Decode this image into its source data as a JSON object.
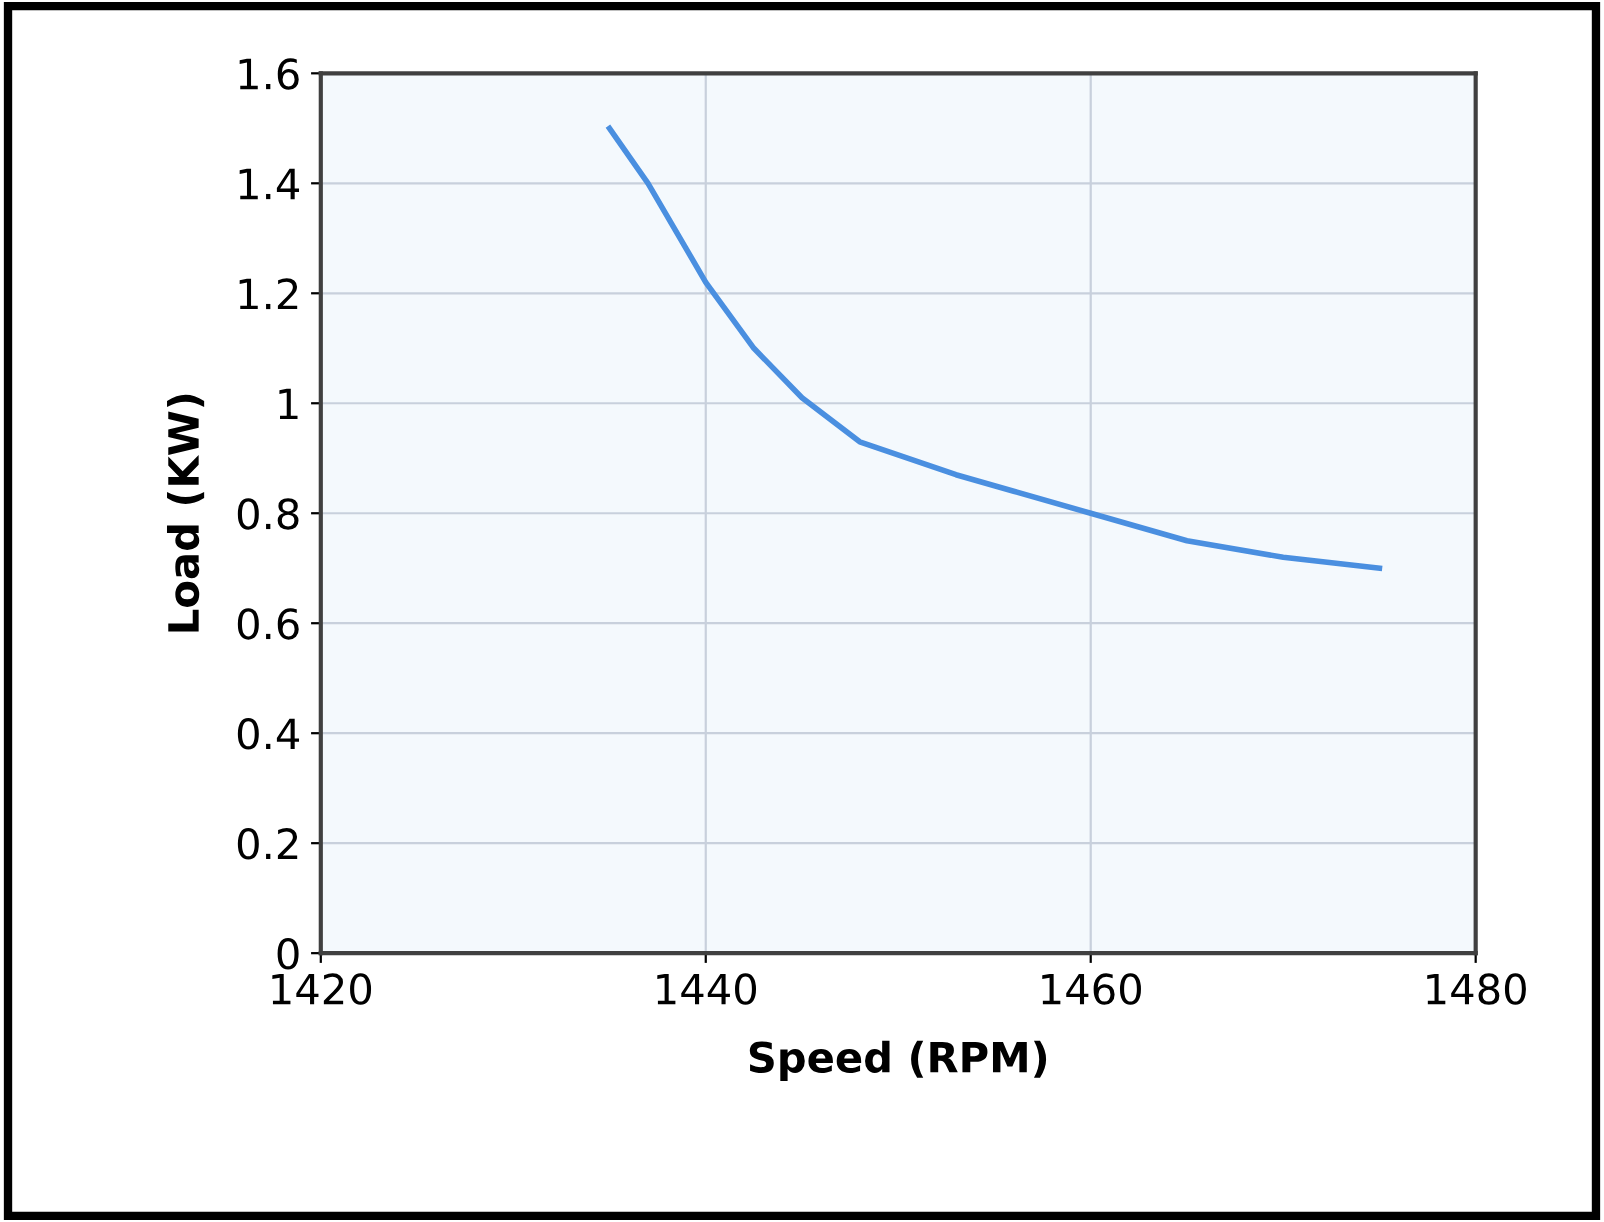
{
  "chart_data": {
    "type": "line",
    "xlabel": "Speed (RPM)",
    "ylabel": "Load (KW)",
    "x": [
      1435,
      1437,
      1440,
      1442.5,
      1445,
      1448,
      1453,
      1456,
      1460,
      1465,
      1470,
      1475
    ],
    "series": [
      {
        "color": "#4a8fe0",
        "values": [
          1.5,
          1.4,
          1.22,
          1.1,
          1.01,
          0.93,
          0.87,
          0.84,
          0.8,
          0.75,
          0.72,
          0.7
        ]
      }
    ],
    "xlim": [
      1420,
      1480
    ],
    "ylim": [
      0,
      1.6
    ],
    "xticks": [
      1420,
      1440,
      1460,
      1480
    ],
    "yticks": [
      0,
      0.2,
      0.4,
      0.6,
      0.8,
      1,
      1.2,
      1.4,
      1.6
    ],
    "grid": true,
    "marker": "none",
    "line_style": "solid"
  }
}
